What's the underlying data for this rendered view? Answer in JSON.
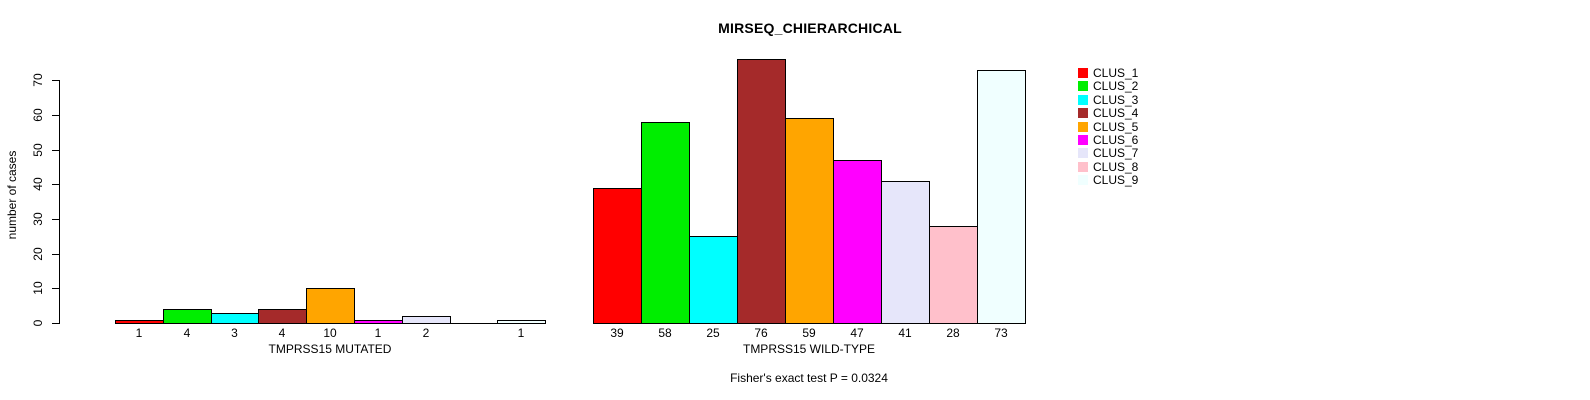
{
  "chart_data": {
    "type": "bar",
    "title": "MIRSEQ_CHIERARCHICAL",
    "ylabel": "number of cases",
    "ylim": [
      0,
      70
    ],
    "yticks": [
      0,
      10,
      20,
      30,
      40,
      50,
      60,
      70
    ],
    "grid": false,
    "legend_position": "right",
    "clusters": [
      {
        "name": "CLUS_1",
        "color": "#ff0000"
      },
      {
        "name": "CLUS_2",
        "color": "#00ee00"
      },
      {
        "name": "CLUS_3",
        "color": "#00ffff"
      },
      {
        "name": "CLUS_4",
        "color": "#a52a2a"
      },
      {
        "name": "CLUS_5",
        "color": "#ffa500"
      },
      {
        "name": "CLUS_6",
        "color": "#ff00ff"
      },
      {
        "name": "CLUS_7",
        "color": "#e6e6fa"
      },
      {
        "name": "CLUS_8",
        "color": "#ffc0cb"
      },
      {
        "name": "CLUS_9",
        "color": "#f0ffff"
      }
    ],
    "groups": [
      {
        "label": "TMPRSS15 MUTATED",
        "values": [
          1,
          4,
          3,
          4,
          10,
          1,
          2,
          0,
          1
        ]
      },
      {
        "label": "TMPRSS15 WILD-TYPE",
        "values": [
          39,
          58,
          25,
          76,
          59,
          47,
          41,
          28,
          73
        ]
      }
    ],
    "annotation": "Fisher's exact test P = 0.0324"
  }
}
